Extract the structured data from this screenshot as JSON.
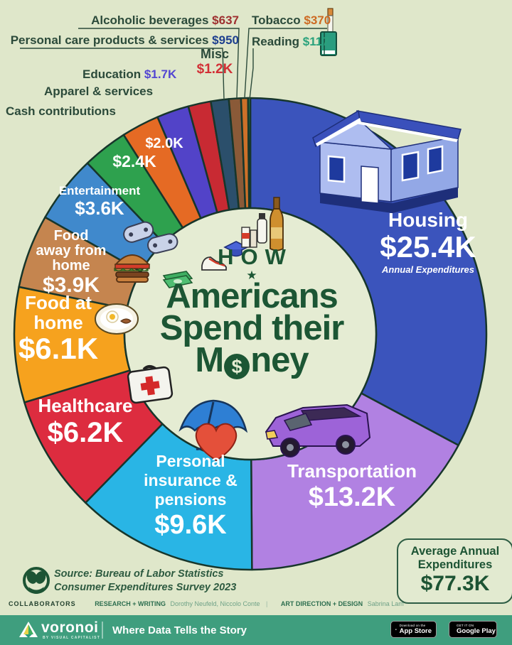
{
  "title": {
    "kicker": "HOW",
    "star": "★",
    "line1": "Americans",
    "line2": "Spend their",
    "line3": "Money"
  },
  "chart_data": {
    "type": "pie",
    "title": "How Americans Spend their Money",
    "total_value": 77.3,
    "total_display": "$77.3K",
    "units": "USD thousands, annual expenditures per household",
    "outline_color": "#17362b",
    "inner_bg": "#e5ecd3",
    "background": "#dfe7ca",
    "slices": [
      {
        "name": "Housing",
        "value": 25.4,
        "display": "$25.4K",
        "color": "#3b54bc",
        "value_color": "#ffffff"
      },
      {
        "name": "Transportation",
        "value": 13.2,
        "display": "$13.2K",
        "color": "#b181e2",
        "value_color": "#ffffff"
      },
      {
        "name": "Personal insurance & pensions",
        "value": 9.6,
        "display": "$9.6K",
        "color": "#29b5e5",
        "value_color": "#ffffff"
      },
      {
        "name": "Healthcare",
        "value": 6.2,
        "display": "$6.2K",
        "color": "#dd2c3f",
        "value_color": "#ffffff"
      },
      {
        "name": "Food at home",
        "value": 6.1,
        "display": "$6.1K",
        "color": "#f6a21e",
        "value_color": "#ffffff"
      },
      {
        "name": "Food away from home",
        "value": 3.9,
        "display": "$3.9K",
        "color": "#c5854f",
        "value_color": "#ffffff"
      },
      {
        "name": "Entertainment",
        "value": 3.6,
        "display": "$3.6K",
        "color": "#4089cc",
        "value_color": "#ffffff"
      },
      {
        "name": "Cash contributions",
        "value": 2.4,
        "display": "$2.4K",
        "color": "#2ea14e",
        "value_color": "#ffffff"
      },
      {
        "name": "Apparel & services",
        "value": 2.0,
        "display": "$2.0K",
        "color": "#e56a24",
        "value_color": "#ffffff"
      },
      {
        "name": "Education",
        "value": 1.7,
        "display": "$1.7K",
        "color": "#5243c8",
        "value_color": "#5346d2"
      },
      {
        "name": "Misc",
        "value": 1.2,
        "display": "$1.2K",
        "color": "#c82a33",
        "value_color": "#d22f35"
      },
      {
        "name": "Personal care products & services",
        "value": 0.95,
        "display": "$950",
        "color": "#2b4f6b",
        "value_color": "#1d3f8f"
      },
      {
        "name": "Alcoholic beverages",
        "value": 0.637,
        "display": "$637",
        "color": "#8a5a38",
        "value_color": "#9e2f2f"
      },
      {
        "name": "Tobacco",
        "value": 0.37,
        "display": "$370",
        "color": "#cd7029",
        "value_color": "#cd6a22"
      },
      {
        "name": "Reading",
        "value": 0.117,
        "display": "$117",
        "color": "#2f9e62",
        "value_color": "#2aa27c"
      }
    ]
  },
  "annotations": {
    "housing_sub": "Annual Expenditures"
  },
  "average_box": {
    "line1": "Average Annual",
    "line2": "Expenditures",
    "value": "$77.3K"
  },
  "source": {
    "line1": "Source: Bureau of Labor Statistics",
    "line2": "Consumer Expenditures Survey 2023"
  },
  "collaborators": {
    "heading": "COLLABORATORS",
    "research_label": "RESEARCH + WRITING",
    "research_names": "Dorothy Neufeld, Niccolo Conte",
    "divider": "|",
    "design_label": "ART DIRECTION + DESIGN",
    "design_names": "Sabrina Lam"
  },
  "footer": {
    "brand": "voronoi",
    "brand_sub": "BY VISUAL CAPITALIST",
    "tagline": "Where Data Tells the Story",
    "appstore_top": "Download on the",
    "appstore_name": "App Store",
    "gplay_top": "GET IT ON",
    "gplay_name": "Google Play"
  }
}
